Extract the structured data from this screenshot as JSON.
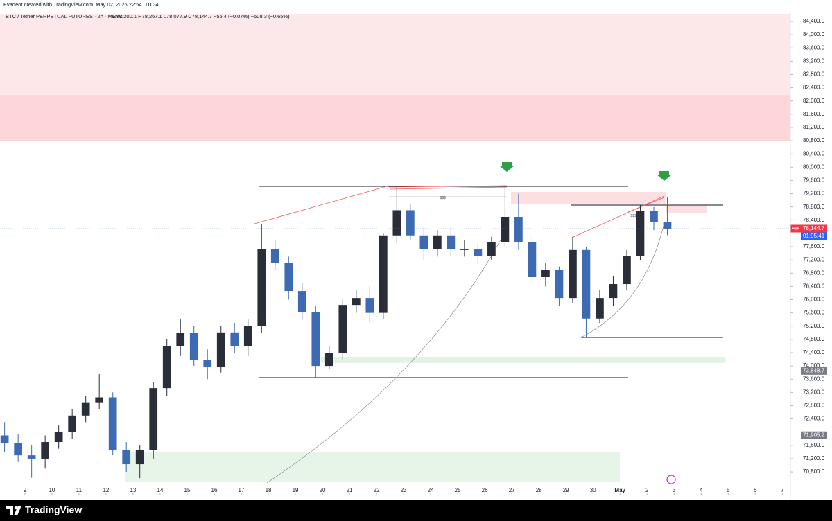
{
  "header": {
    "credit": "Evadeot created with TradingView.com, May 02, 2026 22:54 UTC-4",
    "symbol": "BTC / Tether PERPETUAL FUTURES · 2h · MEXC",
    "ohlc": "O78,200.1 H78,267.1 L78,077.9 C78,144.7 −55.4 (−0.07%) −508.3 (−0.65%)"
  },
  "footer": {
    "brand": "TradingView"
  },
  "chart_data": {
    "type": "candlestick",
    "up_color": "#2a2e39",
    "down_color": "#3d6bb3",
    "xlim": [
      8.08,
      37.3
    ],
    "xticks": [
      9,
      10,
      11,
      12,
      13,
      14,
      15,
      16,
      17,
      18,
      19,
      20,
      21,
      22,
      23,
      24,
      25,
      26,
      27,
      28,
      29,
      30,
      {
        "value": 31,
        "label": "May"
      },
      {
        "value": 32,
        "label": "2"
      },
      {
        "value": 33,
        "label": "3"
      },
      {
        "value": 34,
        "label": "4"
      },
      {
        "value": 35,
        "label": "5"
      },
      {
        "value": 36,
        "label": "6"
      },
      {
        "value": 37,
        "label": "7"
      }
    ],
    "ylim": [
      70090,
      84630
    ],
    "yticks": [
      {
        "value": 84400,
        "label": "84,400.0"
      },
      {
        "value": 84000,
        "label": "84,000.0"
      },
      {
        "value": 83600,
        "label": "83,600.0"
      },
      {
        "value": 83200,
        "label": "83,200.0"
      },
      {
        "value": 82800,
        "label": "82,800.0"
      },
      {
        "value": 82400,
        "label": "82,400.0"
      },
      {
        "value": 82000,
        "label": "82,000.0"
      },
      {
        "value": 81600,
        "label": "81,600.0"
      },
      {
        "value": 81200,
        "label": "81,200.0"
      },
      {
        "value": 80800,
        "label": "80,800.0"
      },
      {
        "value": 80400,
        "label": "80,400.0"
      },
      {
        "value": 80000,
        "label": "80,000.0"
      },
      {
        "value": 79600,
        "label": "79,600.0"
      },
      {
        "value": 79200,
        "label": "79,200.0"
      },
      {
        "value": 78800,
        "label": "78,800.0"
      },
      {
        "value": 78400,
        "label": "78,400.0"
      },
      {
        "value": 77600,
        "label": "77,600.0"
      },
      {
        "value": 77200,
        "label": "77,200.0"
      },
      {
        "value": 76800,
        "label": "76,800.0"
      },
      {
        "value": 76400,
        "label": "76,400.0"
      },
      {
        "value": 76000,
        "label": "76,000.0"
      },
      {
        "value": 75600,
        "label": "75,600.0"
      },
      {
        "value": 75200,
        "label": "75,200.0"
      },
      {
        "value": 74800,
        "label": "74,800.0"
      },
      {
        "value": 74400,
        "label": "74,400.0"
      },
      {
        "value": 74000,
        "label": "74,000.0"
      },
      {
        "value": 73600,
        "label": "73,600.0"
      },
      {
        "value": 73200,
        "label": "73,200.0"
      },
      {
        "value": 72800,
        "label": "72,800.0"
      },
      {
        "value": 72400,
        "label": "72,400.0"
      },
      {
        "value": 71600,
        "label": "71,600.0"
      },
      {
        "value": 71200,
        "label": "71,200.0"
      },
      {
        "value": 70800,
        "label": "70,800.0"
      }
    ],
    "x": [
      8.25,
      8.75,
      9.25,
      9.75,
      10.25,
      10.75,
      11.25,
      11.75,
      12.25,
      12.75,
      13.25,
      13.75,
      14.25,
      14.75,
      15.25,
      15.75,
      16.25,
      16.75,
      17.25,
      17.75,
      18.25,
      18.75,
      19.25,
      19.75,
      20.25,
      20.75,
      21.25,
      21.75,
      22.25,
      22.75,
      23.25,
      23.75,
      24.25,
      24.75,
      25.25,
      25.75,
      26.25,
      26.75,
      27.25,
      27.75,
      28.25,
      28.75,
      29.25,
      29.75,
      30.25,
      30.75,
      31.25,
      31.75,
      32.25,
      32.75
    ],
    "open": [
      71900,
      71660,
      71300,
      71200,
      71700,
      72000,
      72500,
      72900,
      73050,
      71450,
      71030,
      71450,
      73330,
      74590,
      75000,
      74170,
      73960,
      75010,
      74590,
      75200,
      77520,
      77100,
      76260,
      75630,
      74000,
      74380,
      75840,
      76050,
      75600,
      77940,
      78700,
      77940,
      77520,
      77940,
      77520,
      77520,
      77310,
      77730,
      78500,
      77730,
      76680,
      76890,
      76050,
      77500,
      75430,
      76050,
      76470,
      77310,
      78670,
      78350
    ],
    "high": [
      72300,
      71950,
      71600,
      71900,
      72200,
      72700,
      73100,
      73750,
      73200,
      71700,
      71600,
      73500,
      74800,
      75430,
      75200,
      74500,
      75200,
      75300,
      75400,
      78290,
      77800,
      77300,
      76500,
      75800,
      74600,
      76000,
      76300,
      76400,
      78000,
      79440,
      78900,
      78200,
      78100,
      78200,
      77800,
      77700,
      77900,
      79440,
      79200,
      77900,
      77100,
      77000,
      77900,
      77600,
      76300,
      76700,
      77500,
      78860,
      78800,
      79090
    ],
    "low": [
      71400,
      71100,
      70620,
      70900,
      71500,
      71800,
      72300,
      72700,
      71300,
      70800,
      70610,
      71200,
      73100,
      74300,
      74000,
      73600,
      73800,
      74400,
      74300,
      75000,
      76900,
      76000,
      75400,
      73650,
      73900,
      74200,
      75600,
      75300,
      75400,
      77700,
      77800,
      77200,
      77300,
      77300,
      77300,
      77100,
      77200,
      77600,
      77500,
      76500,
      76400,
      75800,
      75900,
      74860,
      75300,
      75800,
      76300,
      77200,
      78100,
      77950
    ],
    "close": [
      71660,
      71300,
      71200,
      71700,
      72000,
      72500,
      72900,
      73050,
      71450,
      71030,
      71450,
      73330,
      74590,
      75000,
      74170,
      73960,
      75010,
      74590,
      75200,
      77520,
      77100,
      76260,
      75630,
      74000,
      74380,
      75840,
      76050,
      75600,
      77940,
      78700,
      77940,
      77520,
      77940,
      77520,
      77520,
      77310,
      77730,
      78500,
      77730,
      76680,
      76890,
      76050,
      77500,
      75430,
      76050,
      76470,
      77310,
      78670,
      78350,
      78145
    ],
    "zones": [
      {
        "top": 84630,
        "bottom": 82180,
        "color": "#fde8e9"
      },
      {
        "top": 82180,
        "bottom": 80780,
        "color": "#fcd6d8"
      },
      {
        "top": 79254,
        "bottom": 78900,
        "start": 26.97,
        "end": 32.7,
        "color": "#fcdfe1"
      },
      {
        "top": 78860,
        "bottom": 78605,
        "start": 32.7,
        "end": 34.2,
        "color": "#fcdfe1"
      },
      {
        "top": 74275,
        "bottom": 74090,
        "start": 19.95,
        "end": 34.9,
        "color": "#e2f3e4"
      },
      {
        "top": 71410,
        "bottom": 70490,
        "start": 12.69,
        "end": 31.0,
        "color": "#e6f5e7"
      }
    ],
    "annotations": [
      {
        "text": "$$$",
        "x": 24.45,
        "y": 79070
      },
      {
        "text": "$$$",
        "x": 31.5,
        "y": 78530
      }
    ],
    "price_tags": [
      {
        "value": 78144.7,
        "label": "78,144.7",
        "color": "#f23645",
        "side_label": "Ask",
        "timer": "01:05:41"
      },
      {
        "value": 73848.7,
        "label": "73,848.7",
        "color": "#787b86"
      },
      {
        "value": 71905.2,
        "label": "71,905.2",
        "color": "#787b86"
      }
    ]
  }
}
